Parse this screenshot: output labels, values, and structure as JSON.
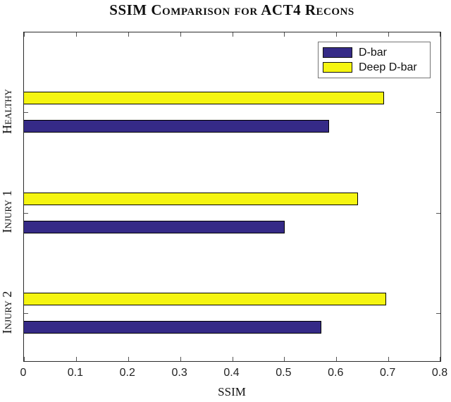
{
  "chart_data": {
    "type": "bar",
    "orientation": "horizontal",
    "title": "SSIM Comparison for ACT4 Recons",
    "xlabel": "SSIM",
    "categories": [
      "Healthy",
      "Injury 1",
      "Injury 2"
    ],
    "series": [
      {
        "name": "D-bar",
        "color": "#352A87",
        "values": [
          0.585,
          0.5,
          0.57
        ]
      },
      {
        "name": "Deep D-bar",
        "color": "#F5F511",
        "values": [
          0.69,
          0.64,
          0.695
        ]
      }
    ],
    "xlim": [
      0,
      0.8
    ],
    "xticks": [
      "0",
      "0.1",
      "0.2",
      "0.3",
      "0.4",
      "0.5",
      "0.6",
      "0.7",
      "0.8"
    ],
    "grid": false,
    "legend": {
      "position": "top-right",
      "entries": [
        "D-bar",
        "Deep D-bar"
      ]
    },
    "bar_edge_color": "#000000"
  }
}
